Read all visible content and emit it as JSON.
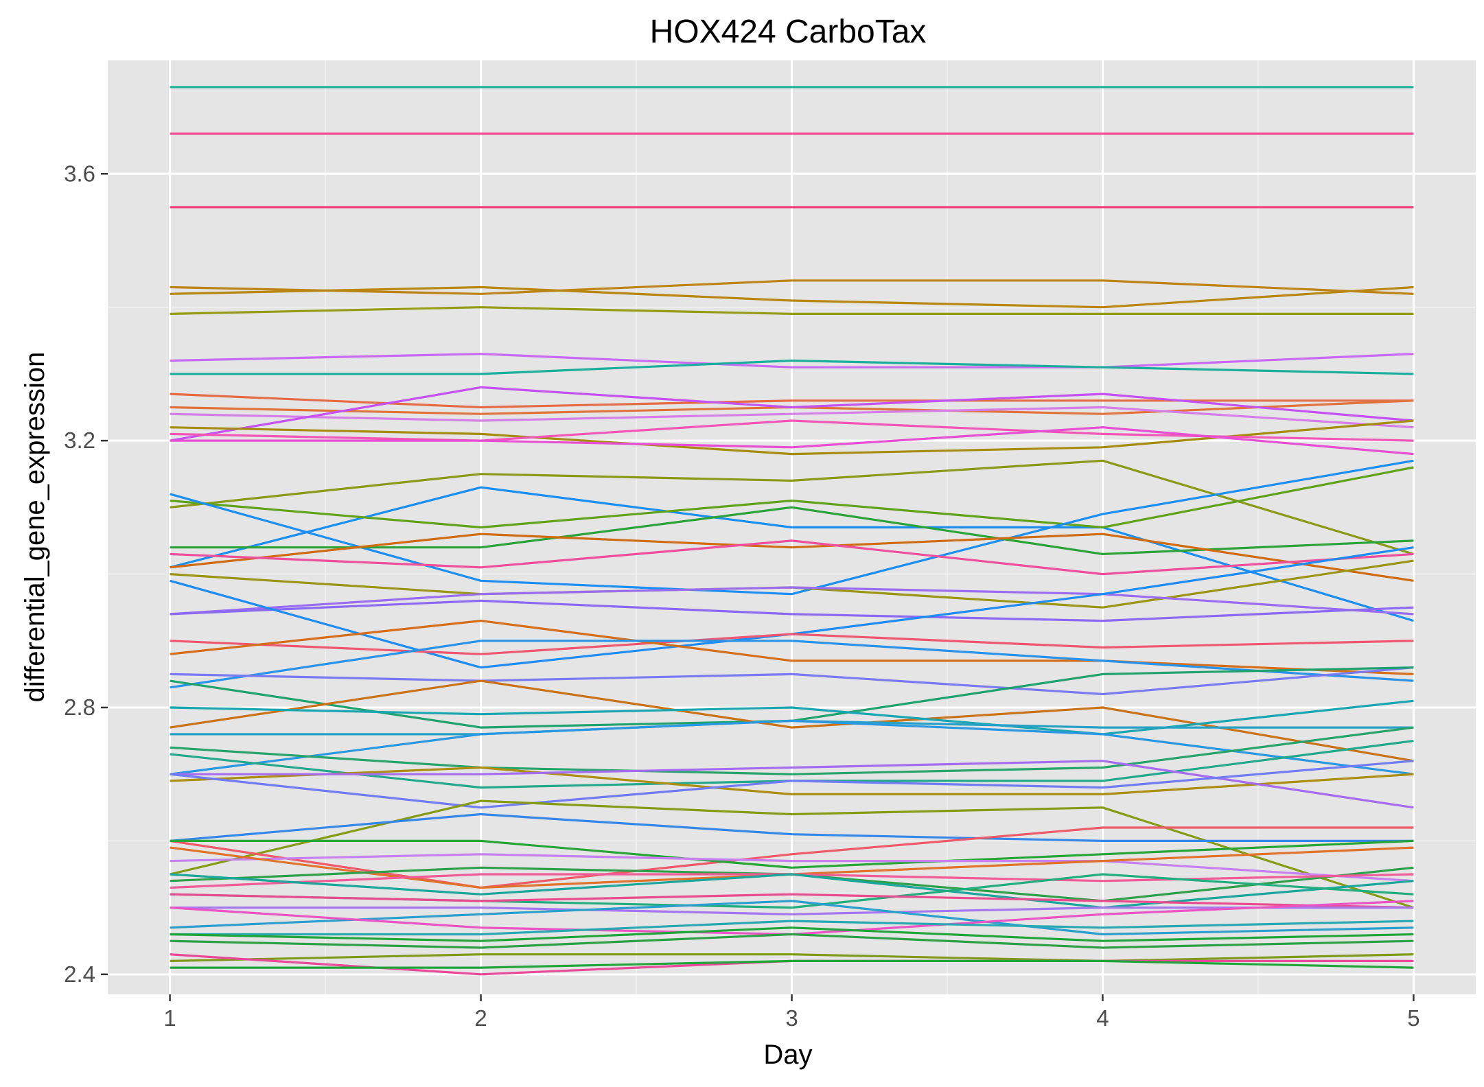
{
  "chart_data": {
    "type": "line",
    "title": "HOX424 CarboTax",
    "xlabel": "Day",
    "ylabel": "differential_gene_expression",
    "x": [
      1,
      2,
      3,
      4,
      5
    ],
    "x_ticks": [
      "1",
      "2",
      "3",
      "4",
      "5"
    ],
    "xlim": [
      0.8,
      5.2
    ],
    "ylim": [
      2.37,
      3.77
    ],
    "y_ticks": [
      2.4,
      2.8,
      3.2,
      3.6
    ],
    "y_tick_labels": [
      "2.4",
      "2.8",
      "3.2",
      "3.6"
    ],
    "grid": true,
    "legend": "none",
    "background": "#e5e5e5",
    "series": [
      {
        "color": "#1fb39a",
        "values": [
          3.73,
          3.73,
          3.73,
          3.73,
          3.73
        ]
      },
      {
        "color": "#f4488f",
        "values": [
          3.66,
          3.66,
          3.66,
          3.66,
          3.66
        ]
      },
      {
        "color": "#f2437e",
        "values": [
          3.55,
          3.55,
          3.55,
          3.55,
          3.55
        ]
      },
      {
        "color": "#bd8415",
        "values": [
          3.43,
          3.42,
          3.44,
          3.44,
          3.42
        ]
      },
      {
        "color": "#b9860f",
        "values": [
          3.42,
          3.43,
          3.41,
          3.4,
          3.43
        ]
      },
      {
        "color": "#959b13",
        "values": [
          3.39,
          3.4,
          3.39,
          3.39,
          3.39
        ]
      },
      {
        "color": "#c86af5",
        "values": [
          3.32,
          3.33,
          3.31,
          3.31,
          3.33
        ]
      },
      {
        "color": "#1cae9c",
        "values": [
          3.3,
          3.3,
          3.32,
          3.31,
          3.3
        ]
      },
      {
        "color": "#e56b44",
        "values": [
          3.27,
          3.25,
          3.26,
          3.26,
          3.26
        ]
      },
      {
        "color": "#e0733c",
        "values": [
          3.25,
          3.24,
          3.25,
          3.24,
          3.26
        ]
      },
      {
        "color": "#d67ee8",
        "values": [
          3.24,
          3.23,
          3.24,
          3.25,
          3.22
        ]
      },
      {
        "color": "#c452f2",
        "values": [
          3.2,
          3.28,
          3.25,
          3.27,
          3.23
        ]
      },
      {
        "color": "#a58c0e",
        "values": [
          3.22,
          3.21,
          3.18,
          3.19,
          3.23
        ]
      },
      {
        "color": "#f257b8",
        "values": [
          3.21,
          3.2,
          3.23,
          3.21,
          3.2
        ]
      },
      {
        "color": "#e64fd2",
        "values": [
          3.2,
          3.2,
          3.19,
          3.22,
          3.18
        ]
      },
      {
        "color": "#8a9a16",
        "values": [
          3.1,
          3.15,
          3.14,
          3.17,
          3.03
        ]
      },
      {
        "color": "#1a8ff0",
        "values": [
          3.01,
          3.13,
          3.07,
          3.07,
          2.93
        ]
      },
      {
        "color": "#60a31a",
        "values": [
          3.11,
          3.07,
          3.11,
          3.07,
          3.16
        ]
      },
      {
        "color": "#1e8ff2",
        "values": [
          3.12,
          2.99,
          2.97,
          3.09,
          3.17
        ]
      },
      {
        "color": "#2ba338",
        "values": [
          3.04,
          3.04,
          3.1,
          3.03,
          3.05
        ]
      },
      {
        "color": "#cf6c12",
        "values": [
          3.01,
          3.06,
          3.04,
          3.06,
          2.99
        ]
      },
      {
        "color": "#ee4f9c",
        "values": [
          3.03,
          3.01,
          3.05,
          3.0,
          3.03
        ]
      },
      {
        "color": "#9a9515",
        "values": [
          3.0,
          2.97,
          2.98,
          2.95,
          3.02
        ]
      },
      {
        "color": "#9a6cf2",
        "values": [
          2.94,
          2.97,
          2.98,
          2.97,
          2.94
        ]
      },
      {
        "color": "#8b69f3",
        "values": [
          2.94,
          2.96,
          2.94,
          2.93,
          2.95
        ]
      },
      {
        "color": "#1e8cf3",
        "values": [
          2.99,
          2.86,
          2.91,
          2.97,
          3.04
        ]
      },
      {
        "color": "#ef5670",
        "values": [
          2.9,
          2.88,
          2.91,
          2.89,
          2.9
        ]
      },
      {
        "color": "#d56e1a",
        "values": [
          2.88,
          2.93,
          2.87,
          2.87,
          2.85
        ]
      },
      {
        "color": "#2893e8",
        "values": [
          2.83,
          2.9,
          2.9,
          2.87,
          2.84
        ]
      },
      {
        "color": "#7a7af3",
        "values": [
          2.85,
          2.84,
          2.85,
          2.82,
          2.86
        ]
      },
      {
        "color": "#1fa26e",
        "values": [
          2.84,
          2.77,
          2.78,
          2.85,
          2.86
        ]
      },
      {
        "color": "#c97318",
        "values": [
          2.77,
          2.84,
          2.77,
          2.8,
          2.72
        ]
      },
      {
        "color": "#1aa6b0",
        "values": [
          2.8,
          2.79,
          2.8,
          2.76,
          2.81
        ]
      },
      {
        "color": "#26a1c5",
        "values": [
          2.76,
          2.76,
          2.78,
          2.77,
          2.77
        ]
      },
      {
        "color": "#2a98e0",
        "values": [
          2.7,
          2.76,
          2.78,
          2.76,
          2.7
        ]
      },
      {
        "color": "#29a36c",
        "values": [
          2.74,
          2.71,
          2.7,
          2.71,
          2.77
        ]
      },
      {
        "color": "#22a88a",
        "values": [
          2.73,
          2.68,
          2.69,
          2.69,
          2.75
        ]
      },
      {
        "color": "#ab8e12",
        "values": [
          2.69,
          2.71,
          2.67,
          2.67,
          2.7
        ]
      },
      {
        "color": "#a66cf0",
        "values": [
          2.7,
          2.7,
          2.71,
          2.72,
          2.65
        ]
      },
      {
        "color": "#6f7cf3",
        "values": [
          2.7,
          2.65,
          2.69,
          2.68,
          2.72
        ]
      },
      {
        "color": "#869b14",
        "values": [
          2.55,
          2.66,
          2.64,
          2.65,
          2.5
        ]
      },
      {
        "color": "#3688e8",
        "values": [
          2.6,
          2.64,
          2.61,
          2.6,
          2.6
        ]
      },
      {
        "color": "#ee5a68",
        "values": [
          2.6,
          2.53,
          2.58,
          2.62,
          2.62
        ]
      },
      {
        "color": "#27a537",
        "values": [
          2.6,
          2.6,
          2.56,
          2.58,
          2.6
        ]
      },
      {
        "color": "#c780f0",
        "values": [
          2.57,
          2.58,
          2.57,
          2.57,
          2.54
        ]
      },
      {
        "color": "#e0732b",
        "values": [
          2.59,
          2.53,
          2.55,
          2.57,
          2.59
        ]
      },
      {
        "color": "#2fa04a",
        "values": [
          2.54,
          2.56,
          2.55,
          2.51,
          2.56
        ]
      },
      {
        "color": "#ef5c96",
        "values": [
          2.53,
          2.55,
          2.55,
          2.54,
          2.55
        ]
      },
      {
        "color": "#1aa69a",
        "values": [
          2.55,
          2.52,
          2.55,
          2.5,
          2.54
        ]
      },
      {
        "color": "#22ad7e",
        "values": [
          2.52,
          2.51,
          2.5,
          2.55,
          2.52
        ]
      },
      {
        "color": "#e84c8e",
        "values": [
          2.52,
          2.51,
          2.52,
          2.51,
          2.5
        ]
      },
      {
        "color": "#a576f0",
        "values": [
          2.5,
          2.5,
          2.49,
          2.5,
          2.5
        ]
      },
      {
        "color": "#2a9fcc",
        "values": [
          2.47,
          2.49,
          2.51,
          2.46,
          2.47
        ]
      },
      {
        "color": "#ea55c4",
        "values": [
          2.5,
          2.47,
          2.46,
          2.49,
          2.51
        ]
      },
      {
        "color": "#27a8b3",
        "values": [
          2.46,
          2.46,
          2.48,
          2.47,
          2.48
        ]
      },
      {
        "color": "#20a53a",
        "values": [
          2.46,
          2.45,
          2.47,
          2.45,
          2.46
        ]
      },
      {
        "color": "#2ba044",
        "values": [
          2.45,
          2.44,
          2.46,
          2.44,
          2.45
        ]
      },
      {
        "color": "#7e9a18",
        "values": [
          2.42,
          2.43,
          2.43,
          2.42,
          2.43
        ]
      },
      {
        "color": "#e84a99",
        "values": [
          2.43,
          2.4,
          2.42,
          2.42,
          2.42
        ]
      },
      {
        "color": "#21a43a",
        "values": [
          2.41,
          2.41,
          2.42,
          2.42,
          2.41
        ]
      }
    ]
  }
}
